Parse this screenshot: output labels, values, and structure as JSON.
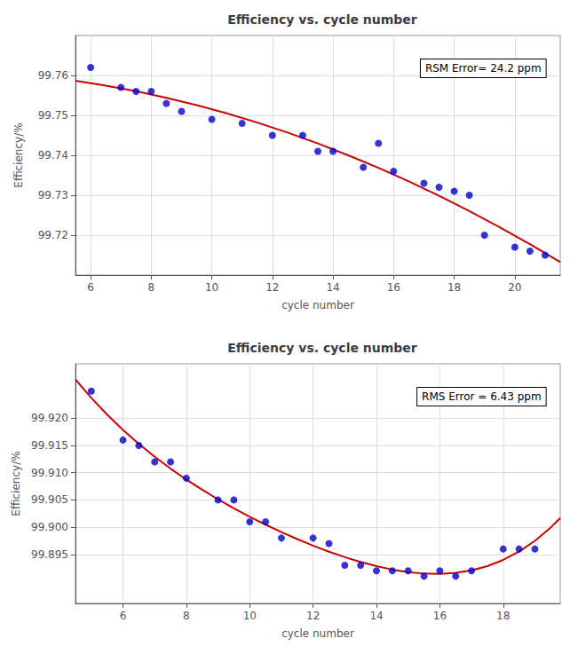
{
  "chart_data": [
    {
      "type": "scatter",
      "title": "Efficiency vs. cycle number",
      "xlabel": "cycle number",
      "ylabel": "Efficiency/%",
      "annotations": [
        "RSM Error= 24.2 ppm"
      ],
      "xlim": [
        5.5,
        21.5
      ],
      "ylim": [
        99.71,
        99.77
      ],
      "xticks": [
        6,
        8,
        10,
        12,
        14,
        16,
        18,
        20
      ],
      "yticks": [
        99.72,
        99.73,
        99.74,
        99.75,
        99.76
      ],
      "grid": true,
      "series": [
        {
          "type": "line",
          "color": "#cc0000",
          "line_style": "solid",
          "x": [
            5.5,
            6.5,
            7.5,
            8.5,
            9.5,
            10.5,
            11.5,
            12.5,
            13.5,
            14.5,
            15.5,
            16.5,
            17.5,
            18.5,
            19.5,
            20.5,
            21.5
          ],
          "values": [
            99.75865,
            99.75745,
            99.75604,
            99.75441,
            99.75256,
            99.75049,
            99.7482,
            99.74569,
            99.74296,
            99.74001,
            99.73685,
            99.73346,
            99.72986,
            99.72604,
            99.72199,
            99.71773,
            99.71325
          ]
        },
        {
          "type": "scatter",
          "color": "#0000cc",
          "marker": "circle",
          "x": [
            6,
            7,
            7.5,
            8,
            8.5,
            9,
            10,
            11,
            12,
            13,
            13.5,
            14,
            15,
            15.5,
            16,
            17,
            17.5,
            18,
            18.5,
            19,
            20,
            20.5,
            21
          ],
          "values": [
            99.762,
            99.757,
            99.756,
            99.756,
            99.753,
            99.751,
            99.749,
            99.748,
            99.745,
            99.745,
            99.741,
            99.741,
            99.737,
            99.743,
            99.736,
            99.733,
            99.732,
            99.731,
            99.73,
            99.72,
            99.717,
            99.716,
            99.715
          ]
        }
      ]
    },
    {
      "type": "scatter",
      "title": "Efficiency vs. cycle number",
      "xlabel": "cycle number",
      "ylabel": "Efficiency/%",
      "annotations": [
        "RMS Error = 6.43 ppm"
      ],
      "xlim": [
        4.5,
        19.8
      ],
      "ylim": [
        99.886,
        99.93
      ],
      "xticks": [
        6,
        8,
        10,
        12,
        14,
        16,
        18
      ],
      "yticks": [
        99.895,
        {
          "value": 99.9,
          "label": "99.900"
        },
        99.905,
        {
          "value": 99.91,
          "label": "99.910"
        },
        99.915,
        {
          "value": 99.92,
          "label": "99.920"
        }
      ],
      "grid": true,
      "series": [
        {
          "type": "line",
          "color": "#cc0000",
          "line_style": "solid",
          "x": [
            4.5,
            5,
            5.5,
            6,
            6.5,
            7,
            7.5,
            8,
            8.5,
            9,
            9.5,
            10,
            10.5,
            11,
            11.5,
            12,
            12.5,
            13,
            13.5,
            14,
            14.5,
            15,
            15.5,
            16,
            16.5,
            17,
            17.5,
            18,
            18.5,
            19,
            19.5,
            19.8
          ],
          "values": [
            99.92714,
            99.92375,
            99.92067,
            99.91787,
            99.9153,
            99.91294,
            99.91076,
            99.90874,
            99.90687,
            99.90511,
            99.90347,
            99.90192,
            99.90046,
            99.89909,
            99.89781,
            99.89661,
            99.8955,
            99.8945,
            99.89361,
            99.89284,
            99.89221,
            99.89175,
            99.89148,
            99.89142,
            99.89161,
            99.89207,
            99.89285,
            99.89399,
            99.89552,
            99.89749,
            99.89995,
            99.90169
          ]
        },
        {
          "type": "scatter",
          "color": "#0000cc",
          "marker": "circle",
          "x": [
            5,
            6,
            6.5,
            7,
            7.5,
            8,
            9,
            9.5,
            10,
            10.5,
            11,
            12,
            12.5,
            13,
            13.5,
            14,
            14.5,
            15,
            15.5,
            16,
            16.5,
            17,
            18,
            18.5,
            19
          ],
          "values": [
            99.925,
            99.916,
            99.915,
            99.912,
            99.912,
            99.909,
            99.905,
            99.905,
            99.901,
            99.901,
            99.898,
            99.898,
            99.897,
            99.893,
            99.893,
            99.892,
            99.892,
            99.892,
            99.891,
            99.892,
            99.891,
            99.892,
            99.896,
            99.896,
            99.896
          ]
        }
      ]
    }
  ]
}
